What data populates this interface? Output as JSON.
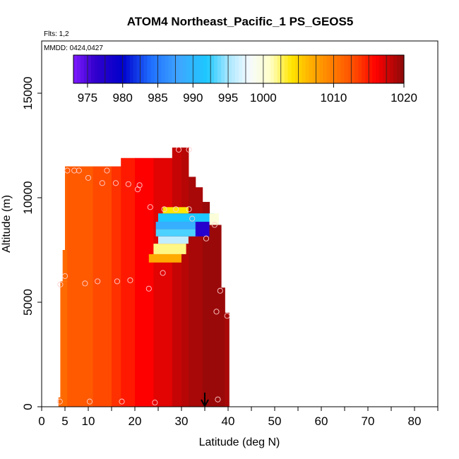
{
  "chart_data": {
    "type": "heatmap",
    "title": "ATOM4 Northeast_Pacific_1 PS_GEOS5",
    "subtitle_flights": "Flts: 1,2",
    "subtitle_dates": "MMDD: 0424,0427",
    "xlabel": "Latitude (deg N)",
    "ylabel": "Altitude (m)",
    "xlim": [
      0,
      85
    ],
    "ylim": [
      0,
      17500
    ],
    "x_ticks": [
      0,
      5,
      10,
      20,
      30,
      40,
      50,
      60,
      70,
      80
    ],
    "x_tick_labels": [
      "0",
      "5",
      "10",
      "20",
      "30",
      "40",
      "50",
      "60",
      "70",
      "80"
    ],
    "y_ticks": [
      0,
      5000,
      10000,
      15000
    ],
    "y_tick_labels": [
      "0",
      "5000",
      "10000",
      "15000"
    ],
    "colorbar": {
      "range": [
        973,
        1020
      ],
      "ticks": [
        975,
        980,
        985,
        990,
        995,
        1000,
        1010,
        1020
      ],
      "tick_labels": [
        "975",
        "980",
        "985",
        "990",
        "995",
        "1000",
        "1010",
        "1020"
      ],
      "stops": [
        {
          "v": 973,
          "color": "#7f1aff"
        },
        {
          "v": 976,
          "color": "#3300cc"
        },
        {
          "v": 980,
          "color": "#0000cc"
        },
        {
          "v": 984,
          "color": "#1f6fff"
        },
        {
          "v": 988,
          "color": "#3fa6ff"
        },
        {
          "v": 992,
          "color": "#1cc8ff"
        },
        {
          "v": 995,
          "color": "#a8e6ff"
        },
        {
          "v": 998,
          "color": "#f5fbff"
        },
        {
          "v": 1001,
          "color": "#ffffc8"
        },
        {
          "v": 1004,
          "color": "#ffe600"
        },
        {
          "v": 1007,
          "color": "#ffaa00"
        },
        {
          "v": 1010,
          "color": "#ff7a00"
        },
        {
          "v": 1013,
          "color": "#ff4a00"
        },
        {
          "v": 1016,
          "color": "#ff0000"
        },
        {
          "v": 1020,
          "color": "#8b0a0a"
        }
      ]
    },
    "heat_columns": [
      {
        "x0": 3.6,
        "x1": 4.4,
        "ybot": 0,
        "ytop": 450,
        "v": 1011
      },
      {
        "x0": 4.0,
        "x1": 5.5,
        "ybot": 0,
        "ytop": 6000,
        "v": 1011
      },
      {
        "x0": 4.5,
        "x1": 5.5,
        "ybot": 6000,
        "ytop": 7500,
        "v": 1011
      },
      {
        "x0": 5.0,
        "x1": 5.7,
        "ybot": 7500,
        "ytop": 11500,
        "v": 1011.5
      },
      {
        "x0": 5.5,
        "x1": 11,
        "ybot": 0,
        "ytop": 11500,
        "v": 1012
      },
      {
        "x0": 11,
        "x1": 15,
        "ybot": 0,
        "ytop": 11500,
        "v": 1013
      },
      {
        "x0": 15,
        "x1": 17,
        "ybot": 0,
        "ytop": 11500,
        "v": 1014
      },
      {
        "x0": 17,
        "x1": 20,
        "ybot": 0,
        "ytop": 11900,
        "v": 1015
      },
      {
        "x0": 20,
        "x1": 24,
        "ybot": 0,
        "ytop": 11900,
        "v": 1016
      },
      {
        "x0": 24,
        "x1": 28,
        "ybot": 0,
        "ytop": 11900,
        "v": 1017
      },
      {
        "x0": 28,
        "x1": 30,
        "ybot": 0,
        "ytop": 12400,
        "v": 1018
      },
      {
        "x0": 30,
        "x1": 31.5,
        "ybot": 0,
        "ytop": 12400,
        "v": 1018.5
      },
      {
        "x0": 31.5,
        "x1": 33,
        "ybot": 0,
        "ytop": 11000,
        "v": 1019
      },
      {
        "x0": 33,
        "x1": 34.5,
        "ybot": 0,
        "ytop": 10500,
        "v": 1019
      },
      {
        "x0": 34.5,
        "x1": 36,
        "ybot": 0,
        "ytop": 9800,
        "v": 1019.5
      },
      {
        "x0": 36,
        "x1": 37,
        "ybot": 0,
        "ytop": 9200,
        "v": 1019.5
      },
      {
        "x0": 37,
        "x1": 38.5,
        "ybot": 0,
        "ytop": 8700,
        "v": 1019.5
      },
      {
        "x0": 38.5,
        "x1": 39.3,
        "ybot": 0,
        "ytop": 5700,
        "v": 1019.5
      },
      {
        "x0": 39.3,
        "x1": 40.2,
        "ybot": 0,
        "ytop": 4500,
        "v": 1019
      }
    ],
    "heat_patches": [
      {
        "x0": 23,
        "x1": 30,
        "ybot": 6900,
        "ytop": 7300,
        "v": 1007
      },
      {
        "x0": 24,
        "x1": 31,
        "ybot": 7300,
        "ytop": 7800,
        "v": 1002
      },
      {
        "x0": 25,
        "x1": 31.5,
        "ybot": 7800,
        "ytop": 8150,
        "v": 996
      },
      {
        "x0": 24.5,
        "x1": 33.5,
        "ybot": 8150,
        "ytop": 8500,
        "v": 993
      },
      {
        "x0": 24.5,
        "x1": 35,
        "ybot": 8500,
        "ytop": 8850,
        "v": 989
      },
      {
        "x0": 33,
        "x1": 36,
        "ybot": 8150,
        "ytop": 8850,
        "v": 977
      },
      {
        "x0": 25,
        "x1": 37,
        "ybot": 8850,
        "ytop": 9250,
        "v": 992
      },
      {
        "x0": 36,
        "x1": 38,
        "ybot": 8700,
        "ytop": 9250,
        "v": 1000
      },
      {
        "x0": 26,
        "x1": 31.5,
        "ybot": 9250,
        "ytop": 9550,
        "v": 1004
      }
    ],
    "points": [
      {
        "x": 3.9,
        "y": 250
      },
      {
        "x": 10.3,
        "y": 250
      },
      {
        "x": 17.2,
        "y": 250
      },
      {
        "x": 24.3,
        "y": 200
      },
      {
        "x": 37.8,
        "y": 350
      },
      {
        "x": 4.0,
        "y": 5850
      },
      {
        "x": 5.0,
        "y": 6250
      },
      {
        "x": 9.3,
        "y": 5900
      },
      {
        "x": 12.0,
        "y": 6000
      },
      {
        "x": 16.2,
        "y": 6000
      },
      {
        "x": 19.0,
        "y": 6050
      },
      {
        "x": 23.0,
        "y": 5650
      },
      {
        "x": 26.0,
        "y": 6400
      },
      {
        "x": 38.3,
        "y": 5550
      },
      {
        "x": 37.5,
        "y": 4550
      },
      {
        "x": 39.8,
        "y": 4350
      },
      {
        "x": 5.5,
        "y": 11300
      },
      {
        "x": 7.0,
        "y": 11300
      },
      {
        "x": 8.0,
        "y": 11300
      },
      {
        "x": 14.0,
        "y": 11300
      },
      {
        "x": 10.0,
        "y": 10950
      },
      {
        "x": 13.0,
        "y": 10700
      },
      {
        "x": 15.9,
        "y": 10700
      },
      {
        "x": 18.6,
        "y": 10650
      },
      {
        "x": 21.0,
        "y": 10600
      },
      {
        "x": 20.6,
        "y": 10400
      },
      {
        "x": 23.3,
        "y": 9550
      },
      {
        "x": 26.3,
        "y": 9450
      },
      {
        "x": 28.8,
        "y": 9450
      },
      {
        "x": 31.6,
        "y": 9450
      },
      {
        "x": 32.3,
        "y": 9000
      },
      {
        "x": 35.3,
        "y": 8050
      },
      {
        "x": 37.1,
        "y": 8700
      },
      {
        "x": 29.4,
        "y": 12300
      },
      {
        "x": 31.6,
        "y": 12300
      }
    ],
    "arrow": {
      "x": 35
    }
  }
}
